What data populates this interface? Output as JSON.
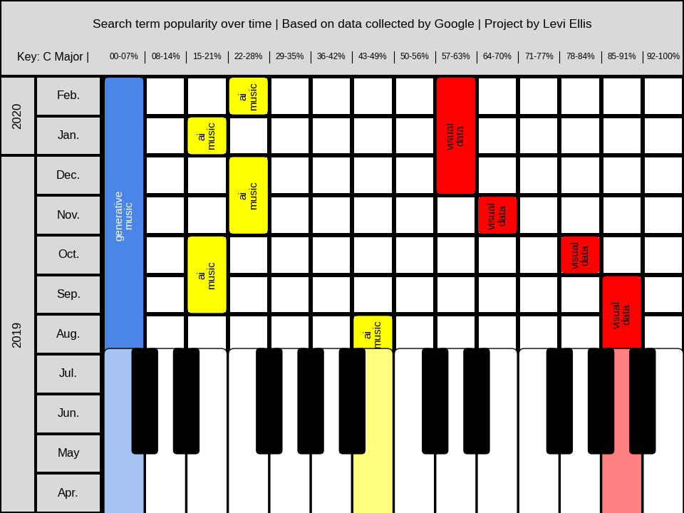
{
  "chart_data": {
    "type": "piano_roll",
    "title": "Search term popularity over time | Based on data collected by Google | Project by Levi Ellis",
    "key": "Key: C Major |",
    "columns": [
      "00-07%",
      "08-14%",
      "15-21%",
      "22-28%",
      "29-35%",
      "36-42%",
      "43-49%",
      "50-56%",
      "57-63%",
      "64-70%",
      "71-77%",
      "78-84%",
      "85-91%",
      "92-100%"
    ],
    "years": [
      {
        "label": "2019",
        "months": [
          "Apr.",
          "May",
          "Jun.",
          "Jul.",
          "Aug.",
          "Sep.",
          "Oct.",
          "Nov.",
          "Dec."
        ]
      },
      {
        "label": "2020",
        "months": [
          "Jan.",
          "Feb."
        ]
      }
    ],
    "series": [
      {
        "name": "generative music",
        "color": "#4a86e8",
        "values": [
          null,
          null,
          null,
          null,
          "00-07%",
          "00-07%",
          "00-07%",
          "00-07%",
          "00-07%",
          "00-07%",
          "00-07%"
        ]
      },
      {
        "name": "ai music",
        "color": "#ffff00",
        "values": [
          null,
          null,
          null,
          null,
          "43-49%",
          "15-21%",
          "15-21%",
          "22-28%",
          "22-28%",
          "15-21%",
          "22-28%"
        ]
      },
      {
        "name": "visual data",
        "color": "#ff0000",
        "values": [
          null,
          null,
          null,
          null,
          "85-91%",
          "85-91%",
          "78-84%",
          "64-70%",
          "57-63%",
          "57-63%",
          "57-63%"
        ]
      }
    ]
  }
}
